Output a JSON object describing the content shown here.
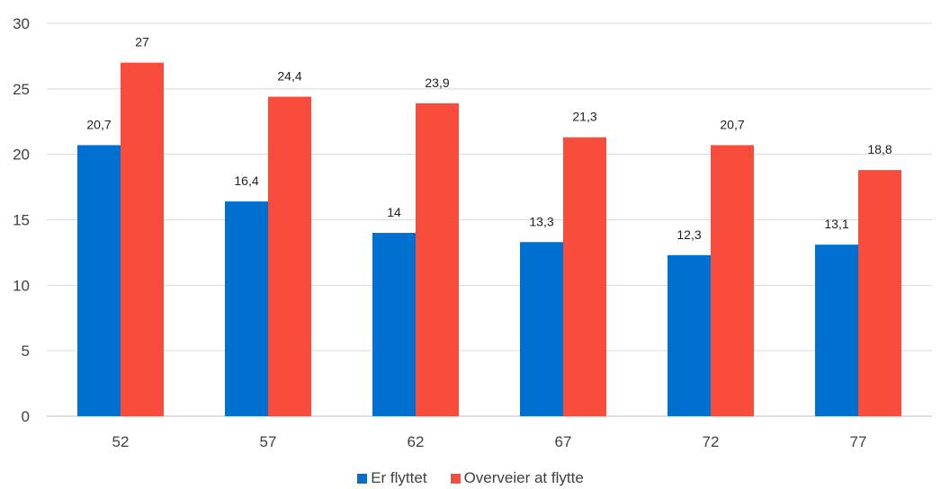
{
  "chart_data": {
    "type": "bar",
    "categories": [
      "52",
      "57",
      "62",
      "67",
      "72",
      "77"
    ],
    "series": [
      {
        "name": "Er flyttet",
        "color": "#0070d0",
        "values": [
          20.7,
          16.4,
          14,
          13.3,
          12.3,
          13.1
        ],
        "labels": [
          "20,7",
          "16,4",
          "14",
          "13,3",
          "12,3",
          "13,1"
        ]
      },
      {
        "name": "Overveier at flytte",
        "color": "#f84c3c",
        "values": [
          27,
          24.4,
          23.9,
          21.3,
          20.7,
          18.8
        ],
        "labels": [
          "27",
          "24,4",
          "23,9",
          "21,3",
          "20,7",
          "18,8"
        ]
      }
    ],
    "ylim": [
      0,
      30
    ],
    "yticks": [
      0,
      5,
      10,
      15,
      20,
      25,
      30
    ],
    "grid": true,
    "legend_position": "bottom"
  }
}
